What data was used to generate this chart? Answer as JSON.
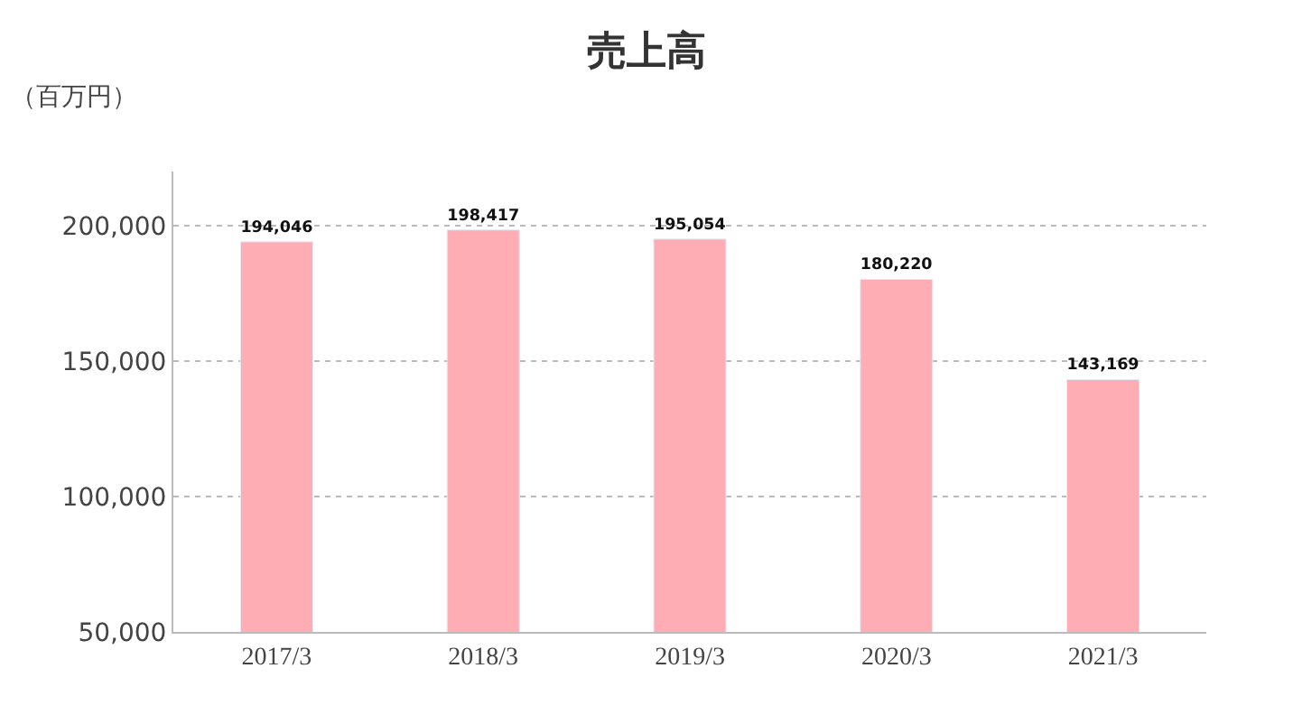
{
  "chart_data": {
    "type": "bar",
    "title": "売上高",
    "ylabel": "（百万円）",
    "categories": [
      "2017/3",
      "2018/3",
      "2019/3",
      "2020/3",
      "2021/3"
    ],
    "values": [
      194046,
      198417,
      195054,
      180220,
      143169
    ],
    "value_labels": [
      "194,046",
      "198,417",
      "195,054",
      "180,220",
      "143,169"
    ],
    "color": "#ffadb5",
    "ylim": [
      50000,
      220000
    ],
    "yticks": [
      {
        "value": 50000,
        "label": "50,000"
      },
      {
        "value": 100000,
        "label": "100,000"
      },
      {
        "value": 150000,
        "label": "150,000"
      },
      {
        "value": 200000,
        "label": "200,000"
      }
    ],
    "grid": "y",
    "legend": false
  }
}
